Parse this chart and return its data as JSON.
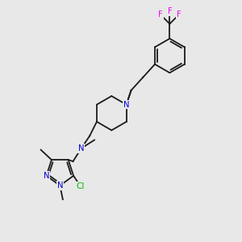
{
  "bg_color": "#e8e8e8",
  "atom_colors": {
    "N": "#0000cc",
    "Cl": "#00bb00",
    "F": "#ee00ee",
    "C": "#000000"
  },
  "bond_color": "#1a1a1a",
  "lw": 1.3,
  "fs": 7.2
}
